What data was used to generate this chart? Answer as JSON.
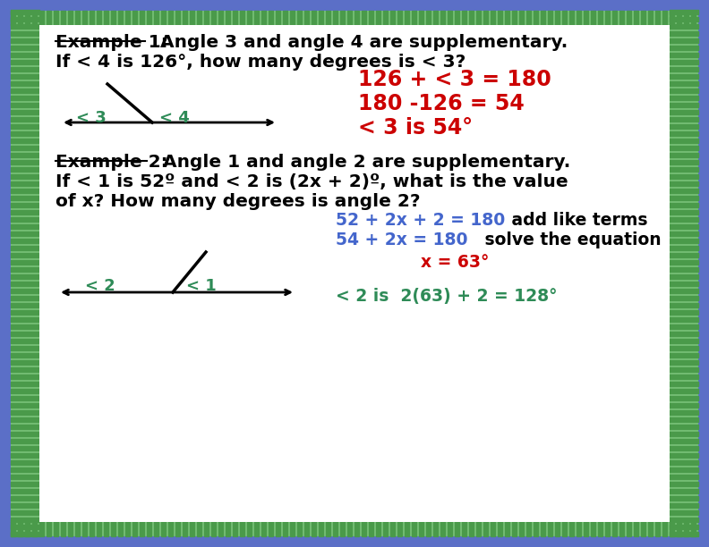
{
  "bg_outer": "#5b6fc7",
  "bg_border": "#7bc47b",
  "bg_inner": "#ffffff",
  "text_black": "#000000",
  "text_red": "#cc0000",
  "text_teal": "#2e8b57",
  "text_blue": "#4466cc",
  "fig_width": 7.92,
  "fig_height": 6.12,
  "example1_title_underline": "Example 1:",
  "example1_title_rest": "  Angle 3 and angle 4 are supplementary.",
  "example1_line2": "If < 4 is 126°, how many degrees is < 3?",
  "ex1_eq1": "126 + < 3 = 180",
  "ex1_eq2": "180 -126 = 54",
  "ex1_eq3": "< 3 is 54°",
  "example2_title_underline": "Example 2:",
  "example2_title_rest": "  Angle 1 and angle 2 are supplementary.",
  "example2_line2": "If < 1 is 52º and < 2 is (2x + 2)º, what is the value",
  "example2_line3": "of x? How many degrees is angle 2?",
  "ex2_eq1_blue": "52 + 2x + 2 = 180",
  "ex2_eq1_black": " add like terms",
  "ex2_eq2_blue": "54 + 2x = 180",
  "ex2_eq2_black": " solve the equation",
  "ex2_eq3": "x = 63°",
  "ex2_eq4": "< 2 is  2(63) + 2 = 128°",
  "label_3": "< 3",
  "label_4": "< 4",
  "label_2": "< 2",
  "label_1": "< 1"
}
